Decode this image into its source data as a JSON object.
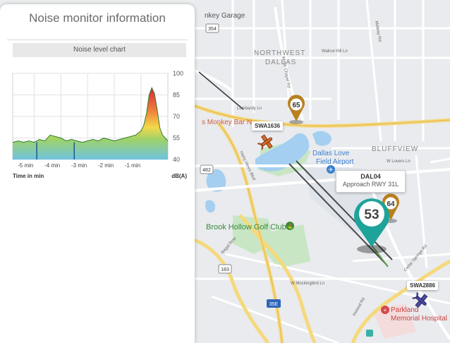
{
  "panel": {
    "title": "Noise monitor information",
    "chart_header": "Noise level chart"
  },
  "chart_data": {
    "type": "area",
    "x_unit_label": "Time in min",
    "y_unit_label": "dB(A)",
    "x_ticks": [
      "-5 min",
      "-4 min",
      "-3 min",
      "-2 min",
      "-1 min"
    ],
    "y_ticks": [
      100,
      85,
      70,
      55,
      40
    ],
    "ylim": [
      40,
      100
    ],
    "xlim": [
      -5.8,
      0
    ],
    "grid": true,
    "series": [
      {
        "x": [
          -5.8,
          -5.6,
          -5.4,
          -5.2,
          -5.0,
          -4.8,
          -4.6,
          -4.4,
          -4.2,
          -4.0,
          -3.8,
          -3.6,
          -3.4,
          -3.2,
          -3.0,
          -2.8,
          -2.6,
          -2.4,
          -2.2,
          -2.0,
          -1.8,
          -1.6,
          -1.4,
          -1.2,
          -1.0,
          -0.9,
          -0.8,
          -0.7,
          -0.6,
          -0.5,
          -0.4,
          -0.3,
          -0.2,
          -0.1,
          0.0
        ],
        "y": [
          52,
          53,
          52,
          53,
          52,
          54,
          53,
          57,
          56,
          55,
          53,
          54,
          53,
          52,
          53,
          54,
          53,
          55,
          54,
          53,
          54,
          55,
          56,
          57,
          60,
          64,
          72,
          85,
          90,
          86,
          75,
          62,
          57,
          55,
          53
        ]
      }
    ],
    "dips": [
      -4.9,
      -3.5
    ]
  },
  "map": {
    "areas": [
      "NORTHWEST",
      "DALLAS",
      "BLUFFVIEW"
    ],
    "places": [
      "nkey Garage",
      "s Monkey Bar N",
      "Dallas Love",
      "Field Airport",
      "Brook Hollow Golf Club",
      "Parkland",
      "Memorial Hospital"
    ],
    "streets": [
      "Lombardy Ln",
      "Walnut Hill Ln",
      "W Lovers Ln",
      "W Mockingbird Ln",
      "Harry Hines Blvd",
      "Regal Row",
      "Inwood Rd",
      "Midway Rd",
      "Webb Chapel Rd",
      "Cedar Springs Rd"
    ],
    "shields": [
      "354",
      "482",
      "183",
      "35E"
    ],
    "flights": [
      {
        "callsign": "SWA1636"
      },
      {
        "callsign": "SWA2886"
      }
    ],
    "monitors": [
      {
        "value": "65",
        "color": "#b8801e"
      },
      {
        "value": "64",
        "color": "#b8801e"
      },
      {
        "value": "53",
        "color": "#1ea39a"
      }
    ],
    "popup": {
      "name": "DAL04",
      "subtitle": "Approach RWY 31L"
    }
  }
}
